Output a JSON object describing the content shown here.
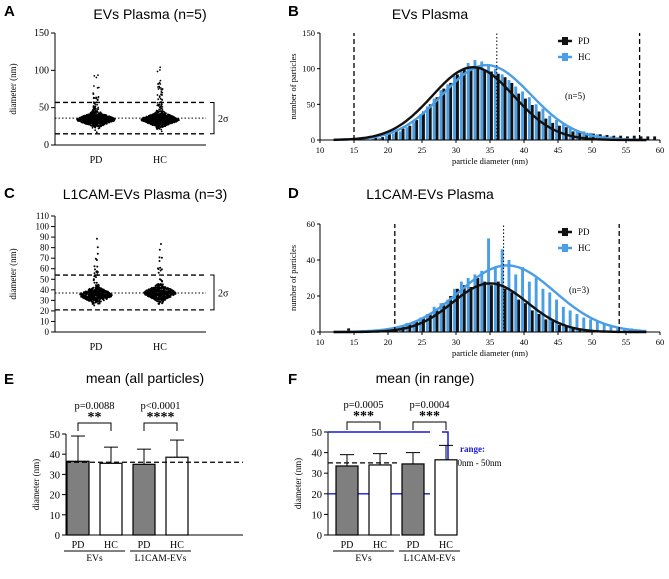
{
  "panels": [
    {
      "label": "A",
      "title": "EVs Plasma  (n=5)"
    },
    {
      "label": "B",
      "title": "EVs Plasma"
    },
    {
      "label": "C",
      "title": "L1CAM-EVs Plasma (n=3)"
    },
    {
      "label": "D",
      "title": "L1CAM-EVs Plasma"
    },
    {
      "label": "E",
      "title": "mean (all particles)"
    },
    {
      "label": "F",
      "title": "mean (in range)"
    }
  ],
  "chart_data": [
    {
      "id": "A",
      "type": "scatter",
      "subtype": "dot-strip",
      "title": "EVs Plasma  (n=5)",
      "ylabel": "diameter (nm)",
      "ylim": [
        0,
        150
      ],
      "yticks": [
        0,
        50,
        100,
        150
      ],
      "categories": [
        "PD",
        "HC"
      ],
      "medians": [
        34,
        34
      ],
      "range_lines": [
        15,
        57
      ],
      "mean_line": 36,
      "sigma_label": "2σ"
    },
    {
      "id": "B",
      "type": "bar",
      "subtype": "histogram-with-gaussian-fit",
      "title": "EVs Plasma",
      "xlabel": "particle diameter (nm)",
      "ylabel": "number of particles",
      "xlim": [
        10,
        60
      ],
      "ylim": [
        0,
        150
      ],
      "xticks": [
        10,
        15,
        20,
        25,
        30,
        35,
        40,
        45,
        50,
        55,
        60
      ],
      "yticks": [
        0,
        50,
        100,
        150
      ],
      "bin_width": 1,
      "series": [
        {
          "name": "PD",
          "color": "#111111",
          "fit": {
            "amplitude": 102,
            "mean": 32.5,
            "sd": 6
          },
          "x": [
            18,
            19,
            20,
            21,
            22,
            23,
            24,
            25,
            26,
            27,
            28,
            29,
            30,
            31,
            32,
            33,
            34,
            35,
            36,
            37,
            38,
            39,
            40,
            41,
            42,
            43,
            44,
            45,
            46,
            47,
            48,
            49,
            50,
            51,
            52,
            53,
            54,
            55,
            56,
            57,
            58,
            59
          ],
          "values": [
            3,
            4,
            8,
            12,
            16,
            20,
            28,
            40,
            50,
            60,
            72,
            80,
            92,
            100,
            100,
            102,
            99,
            96,
            93,
            88,
            80,
            65,
            58,
            49,
            40,
            30,
            24,
            20,
            18,
            12,
            12,
            10,
            9,
            8,
            7,
            6,
            6,
            5,
            6,
            5,
            5,
            5
          ]
        },
        {
          "name": "HC",
          "color": "#4a9ee6",
          "fit": {
            "amplitude": 105,
            "mean": 34.5,
            "sd": 6.5
          },
          "x": [
            18,
            19,
            20,
            21,
            22,
            23,
            24,
            25,
            26,
            27,
            28,
            29,
            30,
            31,
            32,
            33,
            34,
            35,
            36,
            37,
            38,
            39,
            40,
            41,
            42,
            43,
            44,
            45,
            46,
            47,
            48,
            49,
            50,
            51,
            52,
            53,
            54,
            55,
            56,
            57,
            58,
            59
          ],
          "values": [
            2,
            3,
            6,
            9,
            12,
            18,
            25,
            36,
            47,
            58,
            70,
            78,
            90,
            96,
            108,
            112,
            110,
            104,
            100,
            92,
            84,
            75,
            68,
            60,
            50,
            44,
            34,
            28,
            22,
            18,
            14,
            12,
            10,
            8,
            6,
            5,
            4,
            3,
            2,
            2,
            1,
            1
          ]
        }
      ],
      "range_lines": [
        15,
        57
      ],
      "mean_line": 36,
      "annotation": "(n=5)",
      "legend": "top-right"
    },
    {
      "id": "C",
      "type": "scatter",
      "subtype": "dot-strip",
      "title": "L1CAM-EVs Plasma (n=3)",
      "ylabel": "diameter (nm)",
      "ylim": [
        0,
        110
      ],
      "yticks": [
        0,
        10,
        20,
        30,
        40,
        50,
        60,
        70,
        80,
        90,
        100,
        110
      ],
      "categories": [
        "PD",
        "HC"
      ],
      "medians": [
        35,
        37
      ],
      "range_lines": [
        21,
        54
      ],
      "mean_line": 37,
      "sigma_label": "2σ"
    },
    {
      "id": "D",
      "type": "bar",
      "subtype": "histogram-with-gaussian-fit",
      "title": "L1CAM-EVs Plasma",
      "xlabel": "particle diameter (nm)",
      "ylabel": "number of particles",
      "xlim": [
        10,
        60
      ],
      "ylim": [
        0,
        60
      ],
      "xticks": [
        10,
        15,
        20,
        25,
        30,
        35,
        40,
        45,
        50,
        55,
        60
      ],
      "yticks": [
        0,
        20,
        40,
        60
      ],
      "bin_width": 1,
      "series": [
        {
          "name": "PD",
          "color": "#111111",
          "fit": {
            "amplitude": 27,
            "mean": 35,
            "sd": 5.5
          },
          "x": [
            14,
            16,
            19,
            21,
            22,
            23,
            24,
            25,
            26,
            27,
            28,
            29,
            30,
            31,
            32,
            33,
            34,
            35,
            36,
            37,
            38,
            39,
            40,
            41,
            42,
            43,
            44,
            45,
            46,
            47,
            48,
            50
          ],
          "values": [
            2,
            1,
            1,
            2,
            3,
            5,
            6,
            8,
            10,
            12,
            16,
            20,
            24,
            26,
            25,
            30,
            28,
            26,
            28,
            24,
            22,
            18,
            16,
            12,
            10,
            7,
            6,
            4,
            3,
            2,
            2,
            1
          ]
        },
        {
          "name": "HC",
          "color": "#4a9ee6",
          "fit": {
            "amplitude": 37,
            "mean": 37.5,
            "sd": 7
          },
          "x": [
            17,
            19,
            21,
            22,
            23,
            24,
            25,
            26,
            27,
            28,
            29,
            30,
            31,
            32,
            33,
            34,
            35,
            36,
            37,
            38,
            39,
            40,
            41,
            42,
            43,
            44,
            45,
            46,
            47,
            48,
            49,
            50,
            51,
            52,
            53,
            54,
            55,
            56
          ],
          "values": [
            1,
            1,
            2,
            3,
            5,
            6,
            8,
            10,
            14,
            16,
            18,
            24,
            28,
            30,
            32,
            34,
            52,
            36,
            46,
            40,
            32,
            36,
            28,
            30,
            24,
            22,
            18,
            14,
            12,
            10,
            8,
            7,
            6,
            5,
            4,
            3,
            2,
            2
          ]
        }
      ],
      "range_lines": [
        21,
        54
      ],
      "mean_line": 37,
      "annotation": "(n=3)",
      "legend": "top-right"
    },
    {
      "id": "E",
      "type": "bar",
      "subtype": "mean-with-error",
      "title": "mean (all particles)",
      "ylabel": "diameter (nm)",
      "ylim": [
        0,
        50
      ],
      "yticks": [
        0,
        10,
        20,
        30,
        40,
        50
      ],
      "categories": [
        "PD",
        "HC",
        "PD",
        "HC"
      ],
      "groups": [
        "EVs",
        "L1CAM-EVs"
      ],
      "values": [
        36.5,
        35.5,
        35,
        38.5
      ],
      "errors": [
        12.5,
        8,
        7.5,
        8.5
      ],
      "fills": [
        "gray",
        "white",
        "gray",
        "white"
      ],
      "reference_line": 36,
      "comparisons": [
        {
          "p": "p=0.0088",
          "stars": "**"
        },
        {
          "p": "p<0.0001",
          "stars": "****"
        }
      ]
    },
    {
      "id": "F",
      "type": "bar",
      "subtype": "mean-with-error",
      "title": "mean (in range)",
      "ylabel": "diameter (nm)",
      "ylim": [
        0,
        50
      ],
      "yticks": [
        0,
        10,
        20,
        30,
        40,
        50
      ],
      "categories": [
        "PD",
        "HC",
        "PD",
        "HC"
      ],
      "groups": [
        "EVs",
        "L1CAM-EVs"
      ],
      "values": [
        33.5,
        34,
        34.5,
        36.5
      ],
      "errors": [
        5.5,
        5.5,
        5.5,
        7
      ],
      "fills": [
        "gray",
        "white",
        "gray",
        "white"
      ],
      "reference_line": 35,
      "range_lines": [
        20,
        50
      ],
      "range_label": "range:",
      "range_text": "20nm - 50nm",
      "comparisons": [
        {
          "p": "p=0.0005",
          "stars": "***"
        },
        {
          "p": "p=0.0004",
          "stars": "***"
        }
      ]
    }
  ]
}
